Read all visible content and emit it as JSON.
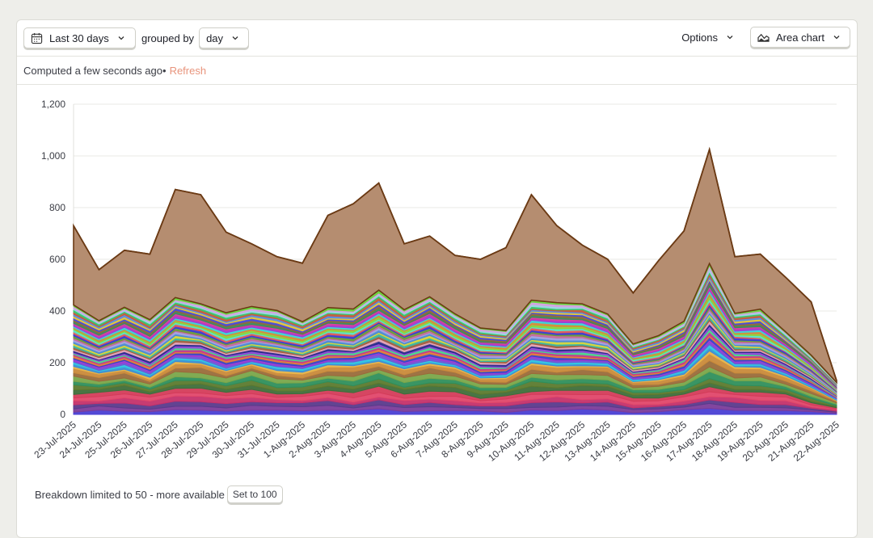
{
  "toolbar": {
    "date_range_label": "Last 30 days",
    "grouped_by_text": "grouped by",
    "interval_label": "day",
    "options_label": "Options",
    "chart_type_label": "Area chart"
  },
  "status": {
    "computed_text": "Computed a few seconds ago",
    "separator": "•",
    "refresh_label": "Refresh"
  },
  "footer": {
    "breakdown_text": "Breakdown limited to 50 - more available",
    "set_button_label": "Set to 100"
  },
  "chart_data": {
    "type": "area",
    "stacked": true,
    "categories": [
      "23-Jul-2025",
      "24-Jul-2025",
      "25-Jul-2025",
      "26-Jul-2025",
      "27-Jul-2025",
      "28-Jul-2025",
      "29-Jul-2025",
      "30-Jul-2025",
      "31-Jul-2025",
      "1-Aug-2025",
      "2-Aug-2025",
      "3-Aug-2025",
      "4-Aug-2025",
      "5-Aug-2025",
      "6-Aug-2025",
      "7-Aug-2025",
      "8-Aug-2025",
      "9-Aug-2025",
      "10-Aug-2025",
      "11-Aug-2025",
      "12-Aug-2025",
      "13-Aug-2025",
      "14-Aug-2025",
      "15-Aug-2025",
      "16-Aug-2025",
      "17-Aug-2025",
      "18-Aug-2025",
      "19-Aug-2025",
      "20-Aug-2025",
      "21-Aug-2025",
      "22-Aug-2025"
    ],
    "totals": [
      730,
      560,
      635,
      620,
      870,
      850,
      705,
      660,
      610,
      585,
      770,
      815,
      895,
      660,
      690,
      615,
      600,
      645,
      850,
      730,
      655,
      600,
      470,
      595,
      710,
      1025,
      610,
      620,
      530,
      435,
      130
    ],
    "ylim": [
      0,
      1200
    ],
    "yticks": [
      0,
      200,
      400,
      600,
      800,
      1000,
      1200
    ],
    "ytick_labels": [
      "0",
      "200",
      "400",
      "600",
      "800",
      "1,000",
      "1,200"
    ],
    "grid": true,
    "series_colors": [
      "#4a3fd4",
      "#7b3c9a",
      "#5a3a8c",
      "#c4326a",
      "#e0476a",
      "#d43c5a",
      "#3f6e3a",
      "#5c7a2e",
      "#2f8f5c",
      "#7aa64a",
      "#9a6b3a",
      "#c98a3a",
      "#e6b34a",
      "#3a8fd4",
      "#2ec4e0",
      "#6a5ad4",
      "#9a3ad4",
      "#3a46c4",
      "#e07a3a",
      "#c43a8a",
      "#4ad48a",
      "#8a4ad4",
      "#2a2a8a",
      "#e0a0b4",
      "#a06040",
      "#3ab4a0",
      "#d4d43a",
      "#4a8ad4",
      "#a0a0e0",
      "#c46a9a",
      "#6a9a3a",
      "#3a3ad4",
      "#e05a5a",
      "#5ae0c4",
      "#8ad43a",
      "#d48a3a",
      "#3ad4d4",
      "#a03ad4",
      "#d43aa0",
      "#3a8a5a",
      "#8a6a3a",
      "#4a4ad4",
      "#e0c43a",
      "#5a8ae0",
      "#c45a3a",
      "#3ac46a",
      "#9ad4e0",
      "#d4a0e0",
      "#6ad43a",
      "#b58d70"
    ],
    "top_series_color": "#b58d70",
    "top_series_line": "#6b3a14"
  }
}
